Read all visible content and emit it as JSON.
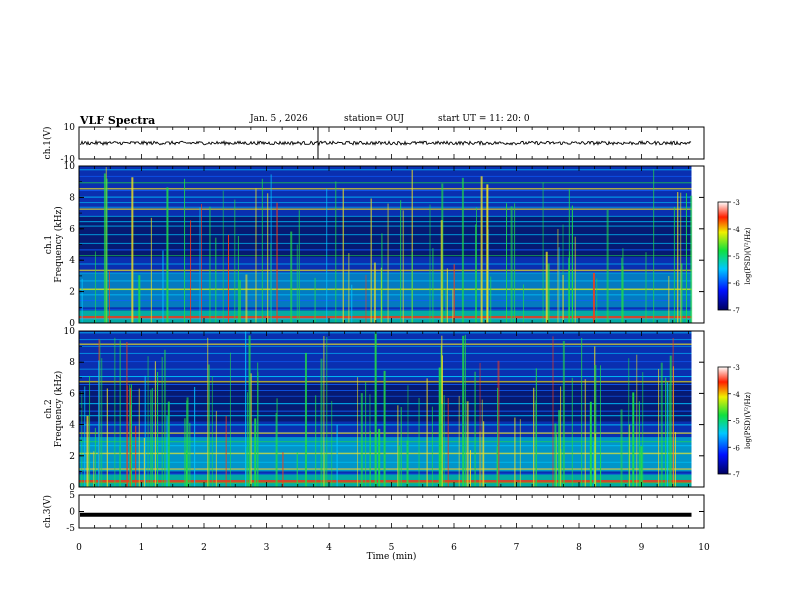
{
  "header": {
    "title": "VLF Spectra",
    "date": "Jan. 5 , 2026",
    "station": "station= OUJ",
    "start": "start UT =  11: 20: 0"
  },
  "colors": {
    "low": "#00006e",
    "mid": "#00bcd4",
    "green": "#22dd22",
    "yellow": "#f0e020",
    "red": "#ff1010"
  },
  "chart_data": [
    {
      "type": "line",
      "panel": "ch1-voltage",
      "ylabel": "ch.1(V)",
      "ylim": [
        -10,
        10
      ],
      "yticks": [
        10,
        -10
      ],
      "xlim": [
        0,
        10
      ],
      "series": [
        {
          "name": "ch.1",
          "level": 0
        }
      ]
    },
    {
      "type": "heatmap",
      "panel": "ch1-spectrogram",
      "ylabel": "ch.1",
      "ylabel2": "Frequency (kHz)",
      "ylim": [
        0,
        10
      ],
      "yticks": [
        0,
        2,
        4,
        6,
        8,
        10
      ],
      "xlim": [
        0,
        10
      ],
      "colorbar": {
        "label": "log(PSD)(V²/Hz)",
        "ticks": [
          -3,
          -4,
          -5,
          -6,
          -7
        ],
        "range": [
          -7,
          -3
        ]
      }
    },
    {
      "type": "heatmap",
      "panel": "ch2-spectrogram",
      "ylabel": "ch.2",
      "ylabel2": "Frequency (kHz)",
      "ylim": [
        0,
        10
      ],
      "yticks": [
        0,
        2,
        4,
        6,
        8,
        10
      ],
      "xlim": [
        0,
        10
      ],
      "colorbar": {
        "label": "log(PSD)(V²/Hz)",
        "ticks": [
          -3,
          -4,
          -5,
          -6,
          -7
        ],
        "range": [
          -7,
          -3
        ]
      }
    },
    {
      "type": "line",
      "panel": "ch3-voltage",
      "ylabel": "ch.3(V)",
      "ylim": [
        -5,
        5
      ],
      "yticks": [
        5,
        0,
        -5
      ],
      "xlim": [
        0,
        10
      ],
      "xlabel": "Time (min)",
      "xticks": [
        0,
        1,
        2,
        3,
        4,
        5,
        6,
        7,
        8,
        9,
        10
      ],
      "series": [
        {
          "name": "ch.3",
          "level": -1
        }
      ]
    }
  ]
}
